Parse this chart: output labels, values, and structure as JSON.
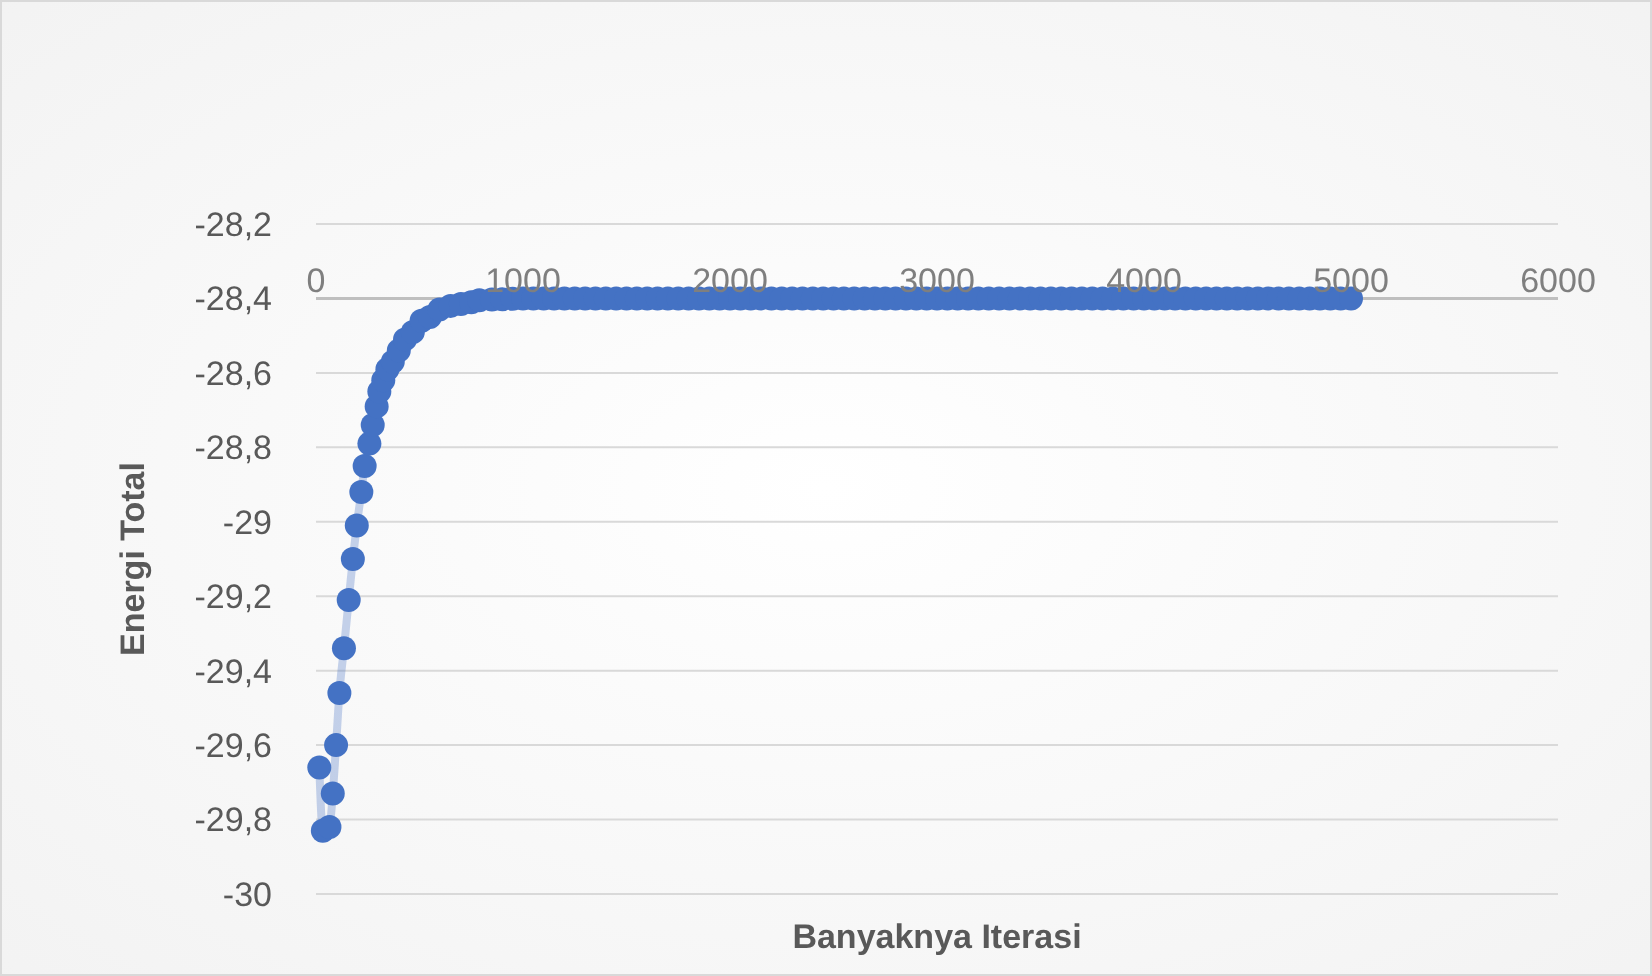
{
  "chart_data": {
    "type": "line",
    "xlabel": "Banyaknya Iterasi",
    "ylabel": "Energi Total",
    "marker": "circle",
    "grid": "y",
    "xlim": [
      0,
      6000
    ],
    "xticks": [
      0,
      1000,
      2000,
      3000,
      4000,
      5000,
      6000
    ],
    "ylim": [
      -30,
      -28.2
    ],
    "yticks": [
      {
        "value": -30,
        "label": "-30"
      },
      {
        "value": -29.8,
        "label": "-29,8"
      },
      {
        "value": -29.6,
        "label": "-29,6"
      },
      {
        "value": -29.4,
        "label": "-29,4"
      },
      {
        "value": -29.2,
        "label": "-29,2"
      },
      {
        "value": -29,
        "label": "-29"
      },
      {
        "value": -28.8,
        "label": "-28,8"
      },
      {
        "value": -28.6,
        "label": "-28,6"
      },
      {
        "value": -28.4,
        "label": "-28,4"
      },
      {
        "value": -28.2,
        "label": "-28,2"
      }
    ],
    "series": [
      {
        "color": "#4472c4",
        "x": [
          16,
          33,
          65,
          81,
          97,
          113,
          135,
          158,
          178,
          197,
          219,
          235,
          258,
          274,
          293,
          306,
          325,
          345,
          371,
          400,
          430,
          468,
          510,
          550,
          596,
          650,
          700,
          750,
          789,
          850,
          900,
          950,
          1000,
          1050,
          1100,
          1150,
          1200,
          1250,
          1300,
          1350,
          1400,
          1450,
          1500,
          1550,
          1600,
          1650,
          1700,
          1750,
          1800,
          1850,
          1900,
          1950,
          2000,
          2050,
          2100,
          2150,
          2200,
          2250,
          2300,
          2350,
          2400,
          2450,
          2500,
          2550,
          2600,
          2650,
          2700,
          2750,
          2800,
          2850,
          2900,
          2950,
          3000,
          3050,
          3100,
          3150,
          3200,
          3250,
          3300,
          3350,
          3400,
          3450,
          3500,
          3550,
          3600,
          3650,
          3700,
          3750,
          3800,
          3850,
          3900,
          3950,
          4000,
          4050,
          4100,
          4150,
          4200,
          4250,
          4300,
          4350,
          4400,
          4450,
          4500,
          4550,
          4600,
          4650,
          4700,
          4750,
          4800,
          4850,
          4900,
          4950,
          5000
        ],
        "values": [
          -29.66,
          -29.83,
          -29.82,
          -29.73,
          -29.6,
          -29.46,
          -29.34,
          -29.21,
          -29.1,
          -29.01,
          -28.92,
          -28.85,
          -28.79,
          -28.74,
          -28.69,
          -28.65,
          -28.62,
          -28.59,
          -28.57,
          -28.54,
          -28.51,
          -28.49,
          -28.46,
          -28.45,
          -28.43,
          -28.42,
          -28.415,
          -28.41,
          -28.405,
          -28.403,
          -28.402,
          -28.401,
          -28.4,
          -28.4,
          -28.4,
          -28.4,
          -28.4,
          -28.4,
          -28.4,
          -28.4,
          -28.4,
          -28.4,
          -28.4,
          -28.4,
          -28.4,
          -28.4,
          -28.4,
          -28.4,
          -28.4,
          -28.4,
          -28.4,
          -28.4,
          -28.4,
          -28.4,
          -28.4,
          -28.4,
          -28.4,
          -28.4,
          -28.4,
          -28.4,
          -28.4,
          -28.4,
          -28.4,
          -28.4,
          -28.4,
          -28.4,
          -28.4,
          -28.4,
          -28.4,
          -28.4,
          -28.4,
          -28.4,
          -28.4,
          -28.4,
          -28.4,
          -28.4,
          -28.4,
          -28.4,
          -28.4,
          -28.4,
          -28.4,
          -28.4,
          -28.4,
          -28.4,
          -28.4,
          -28.4,
          -28.4,
          -28.4,
          -28.4,
          -28.4,
          -28.4,
          -28.4,
          -28.4,
          -28.4,
          -28.4,
          -28.4,
          -28.4,
          -28.4,
          -28.4,
          -28.4,
          -28.4,
          -28.4,
          -28.4,
          -28.4,
          -28.4,
          -28.4,
          -28.4,
          -28.4,
          -28.4,
          -28.4,
          -28.4,
          -28.4,
          -28.4
        ]
      }
    ]
  }
}
